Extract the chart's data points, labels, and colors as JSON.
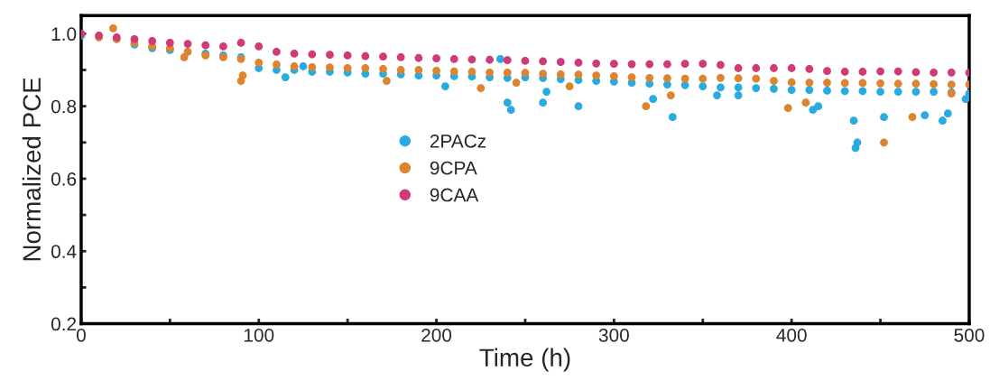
{
  "chart_data": {
    "type": "scatter",
    "xlabel": "Time (h)",
    "ylabel": "Normalized PCE",
    "xlim": [
      0,
      500
    ],
    "ylim": [
      0.2,
      1.05
    ],
    "xticks": [
      0,
      {
        "value": 50,
        "label": null
      },
      100,
      {
        "value": 150,
        "label": null
      },
      200,
      {
        "value": 250,
        "label": null
      },
      300,
      {
        "value": 350,
        "label": null
      },
      400,
      {
        "value": 450,
        "label": null
      },
      500
    ],
    "yticks": [
      0.2,
      {
        "value": 0.3,
        "label": null
      },
      0.4,
      {
        "value": 0.5,
        "label": null
      },
      0.6,
      {
        "value": 0.7,
        "label": null
      },
      0.8,
      {
        "value": 0.9,
        "label": null
      },
      {
        "value": 1.0,
        "label": "1.0"
      }
    ],
    "grid": false,
    "legend": "center",
    "marker": "circle",
    "series": [
      {
        "name": "2PACz",
        "color": "#29abe2",
        "x": [
          0,
          10,
          20,
          30,
          40,
          50,
          60,
          70,
          80,
          90,
          100,
          110,
          120,
          130,
          140,
          150,
          160,
          170,
          180,
          190,
          200,
          210,
          220,
          230,
          240,
          250,
          260,
          270,
          280,
          290,
          300,
          310,
          320,
          330,
          340,
          350,
          360,
          370,
          380,
          390,
          400,
          410,
          420,
          430,
          440,
          450,
          460,
          470,
          480,
          490,
          500,
          240,
          242,
          260,
          262,
          280,
          333,
          322,
          435,
          437,
          436,
          452,
          475,
          485,
          488,
          412,
          415,
          236,
          125,
          115,
          205,
          358,
          370,
          498
        ],
        "values": [
          0.995,
          null,
          null,
          0.97,
          0.96,
          0.955,
          null,
          0.945,
          0.94,
          0.935,
          0.905,
          0.9,
          0.9,
          0.895,
          0.895,
          0.893,
          0.89,
          0.89,
          0.888,
          0.885,
          0.885,
          0.883,
          0.882,
          0.88,
          0.878,
          0.88,
          0.878,
          0.875,
          0.872,
          0.87,
          0.868,
          0.865,
          0.862,
          0.86,
          0.858,
          0.855,
          0.852,
          0.852,
          0.85,
          0.848,
          0.845,
          0.845,
          0.843,
          0.842,
          0.842,
          0.84,
          0.84,
          0.84,
          0.84,
          0.838,
          0.835,
          0.81,
          0.79,
          0.81,
          0.84,
          0.8,
          0.77,
          0.82,
          0.76,
          0.7,
          0.685,
          0.77,
          0.775,
          0.76,
          0.78,
          0.79,
          0.8,
          0.93,
          0.91,
          0.88,
          0.855,
          0.83,
          0.83,
          0.82
        ]
      },
      {
        "name": "9CPA",
        "color": "#dd8430",
        "x": [
          0,
          10,
          20,
          30,
          40,
          50,
          60,
          70,
          80,
          90,
          100,
          110,
          120,
          130,
          140,
          150,
          160,
          170,
          180,
          190,
          200,
          210,
          220,
          230,
          240,
          250,
          260,
          270,
          280,
          290,
          300,
          310,
          320,
          330,
          340,
          350,
          360,
          370,
          380,
          390,
          400,
          410,
          420,
          430,
          440,
          450,
          460,
          470,
          480,
          490,
          500,
          18,
          90,
          91,
          58,
          225,
          172,
          318,
          332,
          398,
          408,
          452,
          468,
          490,
          275,
          245
        ],
        "values": [
          1.0,
          0.99,
          0.985,
          0.975,
          0.965,
          0.96,
          0.95,
          0.94,
          0.935,
          0.93,
          0.92,
          0.915,
          0.91,
          0.908,
          0.907,
          0.905,
          0.905,
          0.903,
          0.9,
          0.9,
          0.898,
          0.896,
          0.895,
          0.893,
          0.893,
          0.892,
          0.89,
          0.888,
          0.887,
          0.885,
          0.883,
          0.88,
          0.878,
          0.877,
          0.876,
          0.876,
          0.878,
          0.877,
          0.876,
          0.87,
          0.866,
          0.865,
          0.865,
          0.864,
          0.864,
          0.863,
          0.862,
          0.862,
          0.861,
          0.86,
          0.86,
          1.015,
          0.87,
          0.885,
          0.935,
          0.85,
          0.87,
          0.8,
          0.83,
          0.795,
          0.81,
          0.7,
          0.77,
          0.835,
          0.855,
          0.865
        ]
      },
      {
        "name": "9CAA",
        "color": "#d03a78",
        "x": [
          0,
          10,
          20,
          30,
          40,
          50,
          60,
          70,
          80,
          90,
          100,
          110,
          120,
          130,
          140,
          150,
          160,
          170,
          180,
          190,
          200,
          210,
          220,
          230,
          240,
          250,
          260,
          270,
          280,
          290,
          300,
          310,
          320,
          330,
          340,
          350,
          360,
          370,
          380,
          390,
          400,
          410,
          420,
          430,
          440,
          450,
          460,
          470,
          480,
          490,
          500
        ],
        "values": [
          1.0,
          0.995,
          0.99,
          0.985,
          0.98,
          0.975,
          0.972,
          0.968,
          0.965,
          0.975,
          0.965,
          0.95,
          0.945,
          0.943,
          0.942,
          0.94,
          0.938,
          0.937,
          0.935,
          0.933,
          0.932,
          0.93,
          0.929,
          0.928,
          0.927,
          0.925,
          0.924,
          0.922,
          0.92,
          0.918,
          0.917,
          0.916,
          0.916,
          0.916,
          0.917,
          0.917,
          0.914,
          0.905,
          0.905,
          0.905,
          0.905,
          0.903,
          0.897,
          0.895,
          0.895,
          0.896,
          0.896,
          0.894,
          0.893,
          0.893,
          0.892
        ]
      }
    ]
  }
}
